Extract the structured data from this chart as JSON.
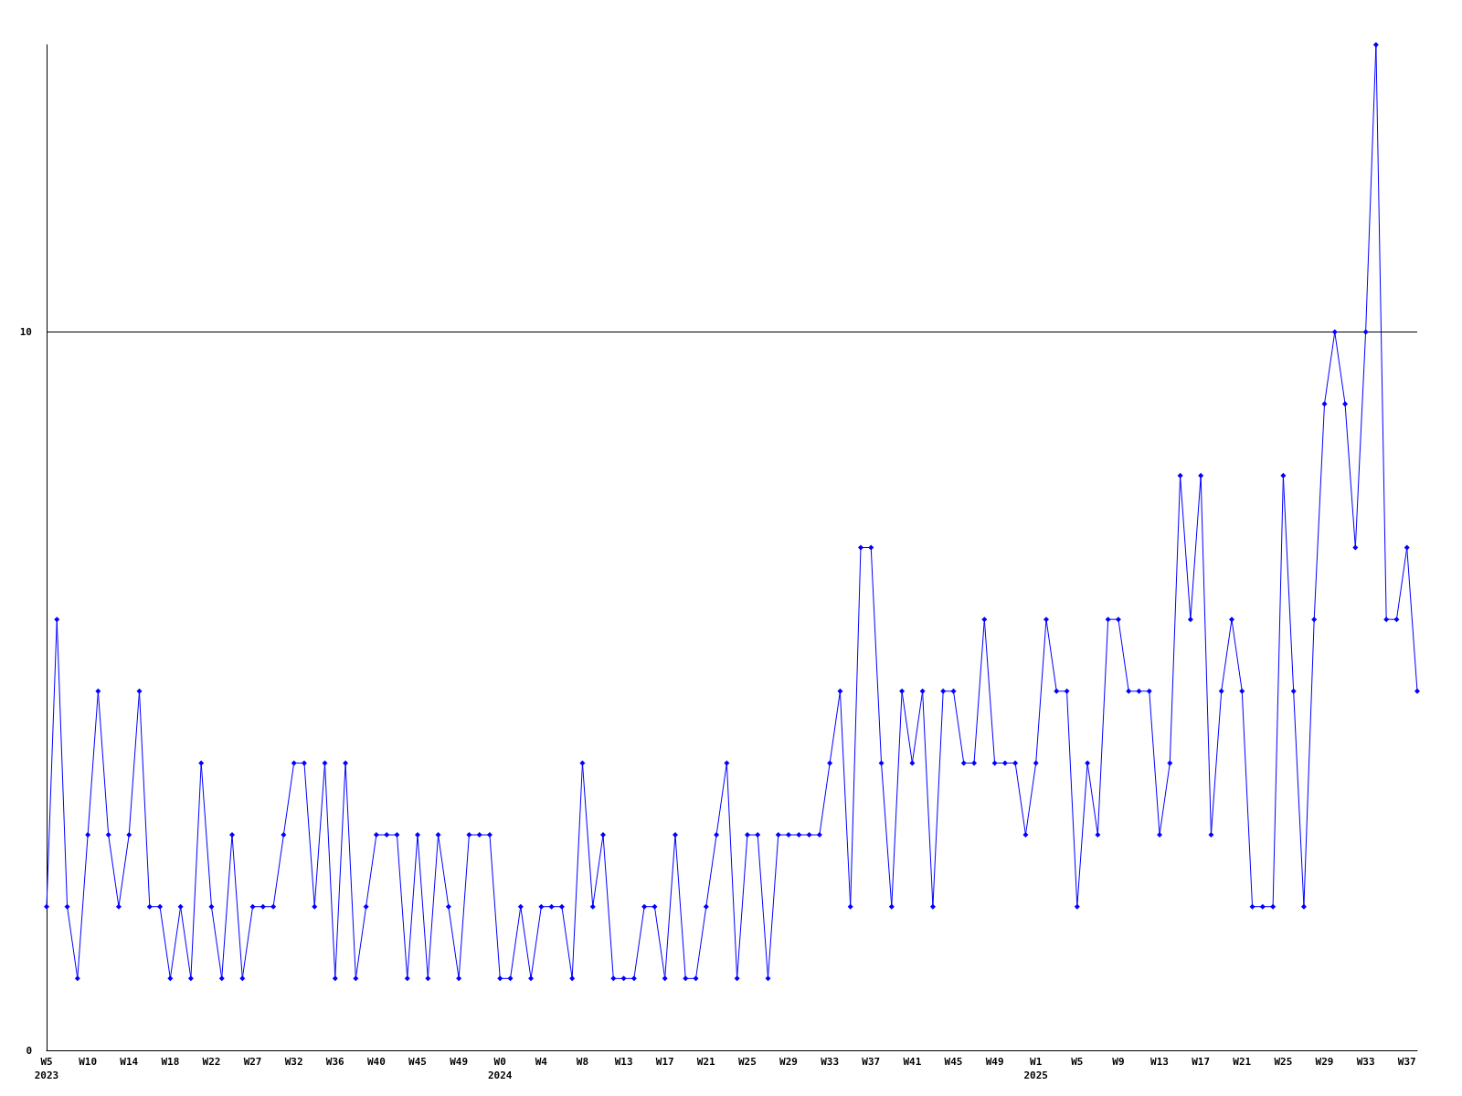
{
  "chart_data": {
    "type": "line",
    "categories": [
      "W5\n2023",
      null,
      null,
      null,
      "W10",
      null,
      null,
      null,
      "W14",
      null,
      null,
      null,
      "W18",
      null,
      null,
      null,
      "W22",
      null,
      null,
      null,
      "W27",
      null,
      null,
      null,
      "W32",
      null,
      null,
      null,
      "W36",
      null,
      null,
      null,
      "W40",
      null,
      null,
      null,
      "W45",
      null,
      null,
      null,
      "W49",
      null,
      null,
      null,
      "W0\n2024",
      null,
      null,
      null,
      "W4",
      null,
      null,
      null,
      "W8",
      null,
      null,
      null,
      "W13",
      null,
      null,
      null,
      "W17",
      null,
      null,
      null,
      "W21",
      null,
      null,
      null,
      "W25",
      null,
      null,
      null,
      "W29",
      null,
      null,
      null,
      "W33",
      null,
      null,
      null,
      "W37",
      null,
      null,
      null,
      "W41",
      null,
      null,
      null,
      "W45",
      null,
      null,
      null,
      "W49",
      null,
      null,
      null,
      "W1\n2025",
      null,
      null,
      null,
      "W5",
      null,
      null,
      null,
      "W9",
      null,
      null,
      null,
      "W13",
      null,
      null,
      null,
      "W17",
      null,
      null,
      null,
      "W21",
      null,
      null,
      null,
      "W25",
      null,
      null,
      null,
      "W29",
      null,
      null,
      null,
      "W33",
      null,
      null,
      null,
      "W37",
      null
    ],
    "series": [
      {
        "color": "#0000ff",
        "values": [
          2,
          6,
          2,
          1,
          3,
          5,
          3,
          2,
          3,
          5,
          2,
          2,
          1,
          2,
          1,
          4,
          2,
          1,
          3,
          1,
          2,
          2,
          2,
          3,
          4,
          4,
          2,
          4,
          1,
          4,
          1,
          2,
          3,
          3,
          3,
          1,
          3,
          1,
          3,
          2,
          1,
          3,
          3,
          3,
          1,
          1,
          2,
          1,
          2,
          2,
          2,
          1,
          4,
          2,
          3,
          1,
          1,
          1,
          2,
          2,
          1,
          3,
          1,
          1,
          2,
          3,
          4,
          1,
          3,
          3,
          1,
          3,
          3,
          3,
          3,
          3,
          4,
          5,
          2,
          7,
          7,
          4,
          2,
          5,
          4,
          5,
          2,
          5,
          5,
          4,
          4,
          6,
          4,
          4,
          4,
          3,
          4,
          6,
          5,
          5,
          2,
          4,
          3,
          6,
          6,
          5,
          5,
          5,
          3,
          4,
          8,
          6,
          8,
          3,
          5,
          6,
          5,
          2,
          2,
          2,
          8,
          5,
          2,
          6,
          9,
          10,
          9,
          7,
          10,
          14,
          6,
          6,
          7,
          5
        ]
      }
    ],
    "ylim": [
      0,
      14
    ],
    "yticks": [
      0,
      10
    ],
    "grid": "y",
    "marker": "diamond",
    "line_style": "solid"
  }
}
